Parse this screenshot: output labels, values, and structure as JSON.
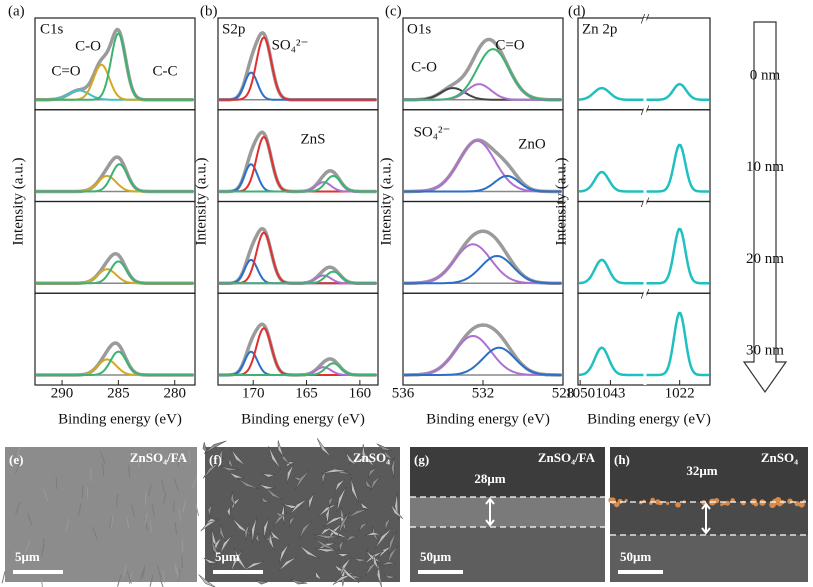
{
  "panels": [
    {
      "label": "(a)",
      "title": "C1s",
      "xlabel": "Binding energy (eV)",
      "ylabel": "Intensity (a.u.)",
      "xlim": [
        292.4,
        278.2
      ],
      "xticks": [
        290,
        285,
        280
      ],
      "annotations": [
        "C-O",
        "C-C",
        "C=O"
      ],
      "rows": [
        {
          "components": [
            {
              "center": 288.5,
              "height": 0.12,
              "width": 0.9,
              "color": "#40c0c8"
            },
            {
              "center": 286.5,
              "height": 0.45,
              "width": 0.7,
              "color": "#d4a820"
            },
            {
              "center": 285,
              "height": 0.85,
              "width": 0.65,
              "color": "#3cb371"
            }
          ]
        },
        {
          "components": [
            {
              "center": 286,
              "height": 0.2,
              "width": 0.8,
              "color": "#d4a820"
            },
            {
              "center": 284.9,
              "height": 0.35,
              "width": 0.7,
              "color": "#3cb371"
            }
          ]
        },
        {
          "components": [
            {
              "center": 286,
              "height": 0.18,
              "width": 0.8,
              "color": "#d4a820"
            },
            {
              "center": 285,
              "height": 0.28,
              "width": 0.7,
              "color": "#3cb371"
            }
          ]
        },
        {
          "components": [
            {
              "center": 286,
              "height": 0.2,
              "width": 0.8,
              "color": "#d4a820"
            },
            {
              "center": 285,
              "height": 0.3,
              "width": 0.7,
              "color": "#3cb371"
            }
          ]
        }
      ]
    },
    {
      "label": "(b)",
      "title": "S2p",
      "xlabel": "Binding energy (eV)",
      "ylabel": "Intensity (a.u.)",
      "xlim": [
        173.3,
        158.3
      ],
      "xticks": [
        170,
        165,
        160
      ],
      "annotations": [
        "SO₄²⁻",
        "ZnS"
      ],
      "rows": [
        {
          "components": [
            {
              "center": 170.2,
              "height": 0.35,
              "width": 0.6,
              "color": "#2a6fc9"
            },
            {
              "center": 169,
              "height": 0.8,
              "width": 0.7,
              "color": "#e03030"
            }
          ]
        },
        {
          "components": [
            {
              "center": 170.2,
              "height": 0.35,
              "width": 0.6,
              "color": "#2a6fc9"
            },
            {
              "center": 169,
              "height": 0.7,
              "width": 0.7,
              "color": "#e03030"
            },
            {
              "center": 163.4,
              "height": 0.12,
              "width": 0.7,
              "color": "#b070d0"
            },
            {
              "center": 162.5,
              "height": 0.2,
              "width": 0.7,
              "color": "#3cb371"
            }
          ]
        },
        {
          "components": [
            {
              "center": 170.2,
              "height": 0.3,
              "width": 0.6,
              "color": "#2a6fc9"
            },
            {
              "center": 169,
              "height": 0.65,
              "width": 0.7,
              "color": "#e03030"
            },
            {
              "center": 163.4,
              "height": 0.1,
              "width": 0.7,
              "color": "#b070d0"
            },
            {
              "center": 162.5,
              "height": 0.15,
              "width": 0.7,
              "color": "#3cb371"
            }
          ]
        },
        {
          "components": [
            {
              "center": 170.2,
              "height": 0.3,
              "width": 0.6,
              "color": "#2a6fc9"
            },
            {
              "center": 169,
              "height": 0.6,
              "width": 0.7,
              "color": "#e03030"
            },
            {
              "center": 163.4,
              "height": 0.1,
              "width": 0.7,
              "color": "#b070d0"
            },
            {
              "center": 162.5,
              "height": 0.15,
              "width": 0.7,
              "color": "#3cb371"
            }
          ]
        }
      ]
    },
    {
      "label": "(c)",
      "title": "O1s",
      "xlabel": "Binding energy (eV)",
      "ylabel": "Intensity (a.u.)",
      "xlim": [
        536,
        528
      ],
      "xticks": [
        536,
        532,
        528
      ],
      "annotations": [
        "C-O",
        "C=O",
        "SO₄²⁻",
        "ZnO"
      ],
      "rows": [
        {
          "components": [
            {
              "center": 533.5,
              "height": 0.15,
              "width": 0.6,
              "color": "#444444"
            },
            {
              "center": 532.2,
              "height": 0.2,
              "width": 0.6,
              "color": "#b070d0"
            },
            {
              "center": 531.5,
              "height": 0.65,
              "width": 0.8,
              "color": "#3cb371"
            }
          ]
        },
        {
          "components": [
            {
              "center": 532.3,
              "height": 0.65,
              "width": 0.9,
              "color": "#b070d0"
            },
            {
              "center": 530.8,
              "height": 0.2,
              "width": 0.6,
              "color": "#2a6fc9"
            }
          ]
        },
        {
          "components": [
            {
              "center": 532.5,
              "height": 0.5,
              "width": 0.9,
              "color": "#b070d0"
            },
            {
              "center": 531.3,
              "height": 0.35,
              "width": 0.8,
              "color": "#2a6fc9"
            }
          ]
        },
        {
          "components": [
            {
              "center": 532.5,
              "height": 0.5,
              "width": 0.9,
              "color": "#b070d0"
            },
            {
              "center": 531.2,
              "height": 0.35,
              "width": 0.8,
              "color": "#2a6fc9"
            }
          ]
        }
      ]
    },
    {
      "label": "(d)",
      "title": "Zn 2p",
      "xlabel": "Binding energy (eV)",
      "ylabel": "Intensity (a.u.)",
      "xlim": [
        [
          1050.5,
          1035
        ],
        [
          1030,
          1015
        ]
      ],
      "xticks": [
        1050,
        1043,
        1022
      ],
      "annotations": [],
      "rows": [
        {
          "components": [
            {
              "center": 1045,
              "height": 0.15,
              "width": 1.8,
              "color": "#20c0c0"
            },
            {
              "center": 1022,
              "height": 0.2,
              "width": 1.5,
              "color": "#20c0c0"
            }
          ]
        },
        {
          "components": [
            {
              "center": 1045,
              "height": 0.25,
              "width": 1.6,
              "color": "#20c0c0"
            },
            {
              "center": 1022,
              "height": 0.6,
              "width": 1.3,
              "color": "#20c0c0"
            }
          ]
        },
        {
          "components": [
            {
              "center": 1045,
              "height": 0.3,
              "width": 1.6,
              "color": "#20c0c0"
            },
            {
              "center": 1022,
              "height": 0.7,
              "width": 1.3,
              "color": "#20c0c0"
            }
          ]
        },
        {
          "components": [
            {
              "center": 1045,
              "height": 0.35,
              "width": 1.6,
              "color": "#20c0c0"
            },
            {
              "center": 1022,
              "height": 0.8,
              "width": 1.3,
              "color": "#20c0c0"
            }
          ]
        }
      ]
    }
  ],
  "stack_labels": [
    "0 nm",
    "10 nm",
    "20 nm",
    "30 nm"
  ],
  "sem": [
    {
      "label": "(e)",
      "sample": "ZnSO₄/FA",
      "scale": "5μm"
    },
    {
      "label": "(f)",
      "sample": "ZnSO₄",
      "scale": "5μm"
    },
    {
      "label": "(g)",
      "sample": "ZnSO₄/FA",
      "thickness": "28μm",
      "scale": "50μm"
    },
    {
      "label": "(h)",
      "sample": "ZnSO₄",
      "thickness": "32μm",
      "scale": "50μm"
    }
  ]
}
